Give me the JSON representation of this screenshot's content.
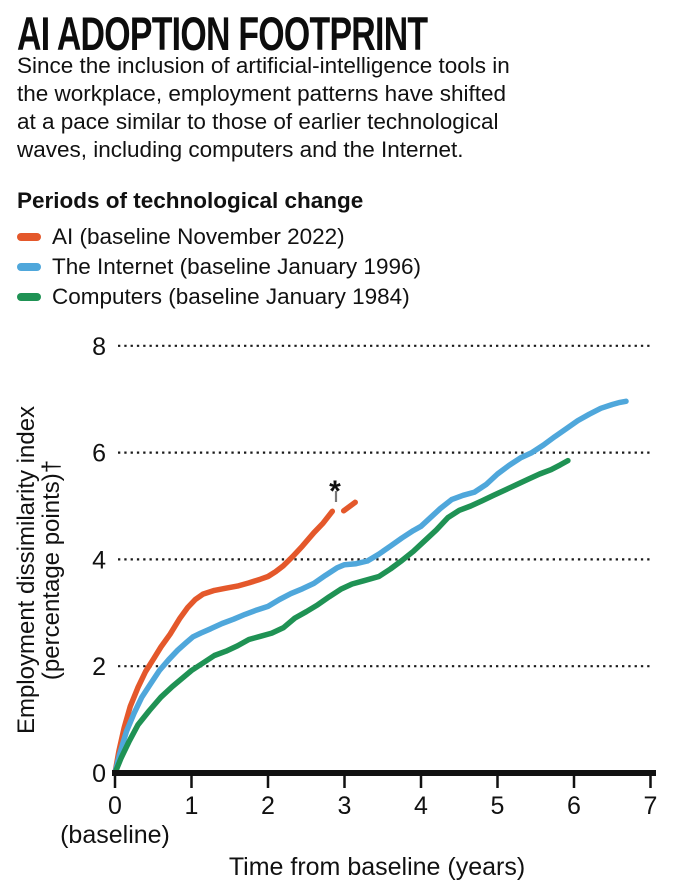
{
  "header": {
    "title": "AI ADOPTION FOOTPRINT",
    "subtitle": "Since the inclusion of artificial-intelligence tools in\nthe workplace, employment patterns have shifted\nat a pace similar to those of earlier technological\nwaves, including computers and the Internet."
  },
  "legend": {
    "heading": "Periods of technological change",
    "items": [
      {
        "id": "ai",
        "label": "AI (baseline November 2022)",
        "color": "#E4582B"
      },
      {
        "id": "internet",
        "label": "The Internet (baseline January 1996)",
        "color": "#4FA7DB"
      },
      {
        "id": "computers",
        "label": "Computers (baseline January 1984)",
        "color": "#1F9254"
      }
    ]
  },
  "chart_data": {
    "type": "line",
    "xlabel": "Time from baseline (years)",
    "ylabel_line1": "Employment dissimilarity index",
    "ylabel_line2": "(percentage points)†",
    "xlim": [
      0,
      7
    ],
    "ylim": [
      0,
      8
    ],
    "x_ticks": [
      0,
      1,
      2,
      3,
      4,
      5,
      6,
      7
    ],
    "x_zero_note": "(baseline)",
    "y_ticks": [
      0,
      2,
      4,
      6,
      8
    ],
    "grid": "horizontal dotted lines at y = 2, 4, 6, 8",
    "legend_position": "above chart, top-left",
    "annotation": {
      "symbol": "*",
      "x": 2.88,
      "y": 5.4,
      "meaning": "marks detached provisional end segment of AI line"
    },
    "series": [
      {
        "name": "AI",
        "color": "#E4582B",
        "style": "solid",
        "points": [
          [
            0,
            0
          ],
          [
            0.05,
            0.4
          ],
          [
            0.12,
            0.85
          ],
          [
            0.2,
            1.25
          ],
          [
            0.3,
            1.6
          ],
          [
            0.4,
            1.9
          ],
          [
            0.5,
            2.13
          ],
          [
            0.6,
            2.36
          ],
          [
            0.72,
            2.6
          ],
          [
            0.85,
            2.9
          ],
          [
            0.95,
            3.1
          ],
          [
            1.05,
            3.25
          ],
          [
            1.15,
            3.35
          ],
          [
            1.3,
            3.42
          ],
          [
            1.45,
            3.46
          ],
          [
            1.6,
            3.5
          ],
          [
            1.75,
            3.56
          ],
          [
            1.9,
            3.63
          ],
          [
            2.0,
            3.68
          ],
          [
            2.1,
            3.77
          ],
          [
            2.2,
            3.88
          ],
          [
            2.32,
            4.05
          ],
          [
            2.45,
            4.25
          ],
          [
            2.6,
            4.5
          ],
          [
            2.72,
            4.68
          ],
          [
            2.84,
            4.9
          ]
        ]
      },
      {
        "name": "AI (detached end segment)",
        "color": "#E4582B",
        "style": "solid",
        "points": [
          [
            2.99,
            4.91
          ],
          [
            3.14,
            5.07
          ]
        ]
      },
      {
        "name": "The Internet",
        "color": "#4FA7DB",
        "style": "solid",
        "points": [
          [
            0,
            0
          ],
          [
            0.06,
            0.35
          ],
          [
            0.15,
            0.78
          ],
          [
            0.25,
            1.12
          ],
          [
            0.35,
            1.42
          ],
          [
            0.46,
            1.66
          ],
          [
            0.58,
            1.92
          ],
          [
            0.7,
            2.12
          ],
          [
            0.82,
            2.3
          ],
          [
            0.93,
            2.44
          ],
          [
            1.02,
            2.55
          ],
          [
            1.12,
            2.62
          ],
          [
            1.25,
            2.7
          ],
          [
            1.4,
            2.8
          ],
          [
            1.55,
            2.88
          ],
          [
            1.7,
            2.97
          ],
          [
            1.85,
            3.05
          ],
          [
            2.0,
            3.12
          ],
          [
            2.15,
            3.25
          ],
          [
            2.3,
            3.36
          ],
          [
            2.45,
            3.45
          ],
          [
            2.6,
            3.55
          ],
          [
            2.75,
            3.7
          ],
          [
            2.9,
            3.84
          ],
          [
            3.0,
            3.9
          ],
          [
            3.15,
            3.92
          ],
          [
            3.3,
            3.97
          ],
          [
            3.45,
            4.1
          ],
          [
            3.6,
            4.25
          ],
          [
            3.75,
            4.4
          ],
          [
            3.9,
            4.54
          ],
          [
            4.0,
            4.62
          ],
          [
            4.1,
            4.75
          ],
          [
            4.25,
            4.95
          ],
          [
            4.4,
            5.12
          ],
          [
            4.55,
            5.2
          ],
          [
            4.7,
            5.26
          ],
          [
            4.85,
            5.4
          ],
          [
            5.0,
            5.6
          ],
          [
            5.15,
            5.76
          ],
          [
            5.3,
            5.9
          ],
          [
            5.45,
            6.0
          ],
          [
            5.6,
            6.14
          ],
          [
            5.75,
            6.3
          ],
          [
            5.9,
            6.45
          ],
          [
            6.05,
            6.6
          ],
          [
            6.2,
            6.72
          ],
          [
            6.35,
            6.83
          ],
          [
            6.5,
            6.9
          ],
          [
            6.6,
            6.94
          ],
          [
            6.68,
            6.96
          ]
        ]
      },
      {
        "name": "Computers",
        "color": "#1F9254",
        "style": "solid",
        "points": [
          [
            0,
            0
          ],
          [
            0.08,
            0.28
          ],
          [
            0.18,
            0.58
          ],
          [
            0.3,
            0.9
          ],
          [
            0.45,
            1.17
          ],
          [
            0.6,
            1.42
          ],
          [
            0.75,
            1.62
          ],
          [
            0.9,
            1.8
          ],
          [
            1.0,
            1.92
          ],
          [
            1.15,
            2.06
          ],
          [
            1.3,
            2.2
          ],
          [
            1.45,
            2.28
          ],
          [
            1.6,
            2.38
          ],
          [
            1.75,
            2.5
          ],
          [
            1.9,
            2.56
          ],
          [
            2.05,
            2.62
          ],
          [
            2.2,
            2.72
          ],
          [
            2.35,
            2.9
          ],
          [
            2.5,
            3.02
          ],
          [
            2.65,
            3.15
          ],
          [
            2.8,
            3.3
          ],
          [
            2.95,
            3.44
          ],
          [
            3.1,
            3.54
          ],
          [
            3.25,
            3.6
          ],
          [
            3.45,
            3.68
          ],
          [
            3.6,
            3.82
          ],
          [
            3.75,
            3.98
          ],
          [
            3.9,
            4.15
          ],
          [
            4.05,
            4.35
          ],
          [
            4.2,
            4.55
          ],
          [
            4.35,
            4.78
          ],
          [
            4.5,
            4.92
          ],
          [
            4.65,
            5.0
          ],
          [
            4.8,
            5.1
          ],
          [
            4.95,
            5.2
          ],
          [
            5.1,
            5.3
          ],
          [
            5.25,
            5.4
          ],
          [
            5.4,
            5.5
          ],
          [
            5.55,
            5.6
          ],
          [
            5.7,
            5.68
          ],
          [
            5.82,
            5.77
          ],
          [
            5.92,
            5.85
          ]
        ]
      }
    ]
  }
}
